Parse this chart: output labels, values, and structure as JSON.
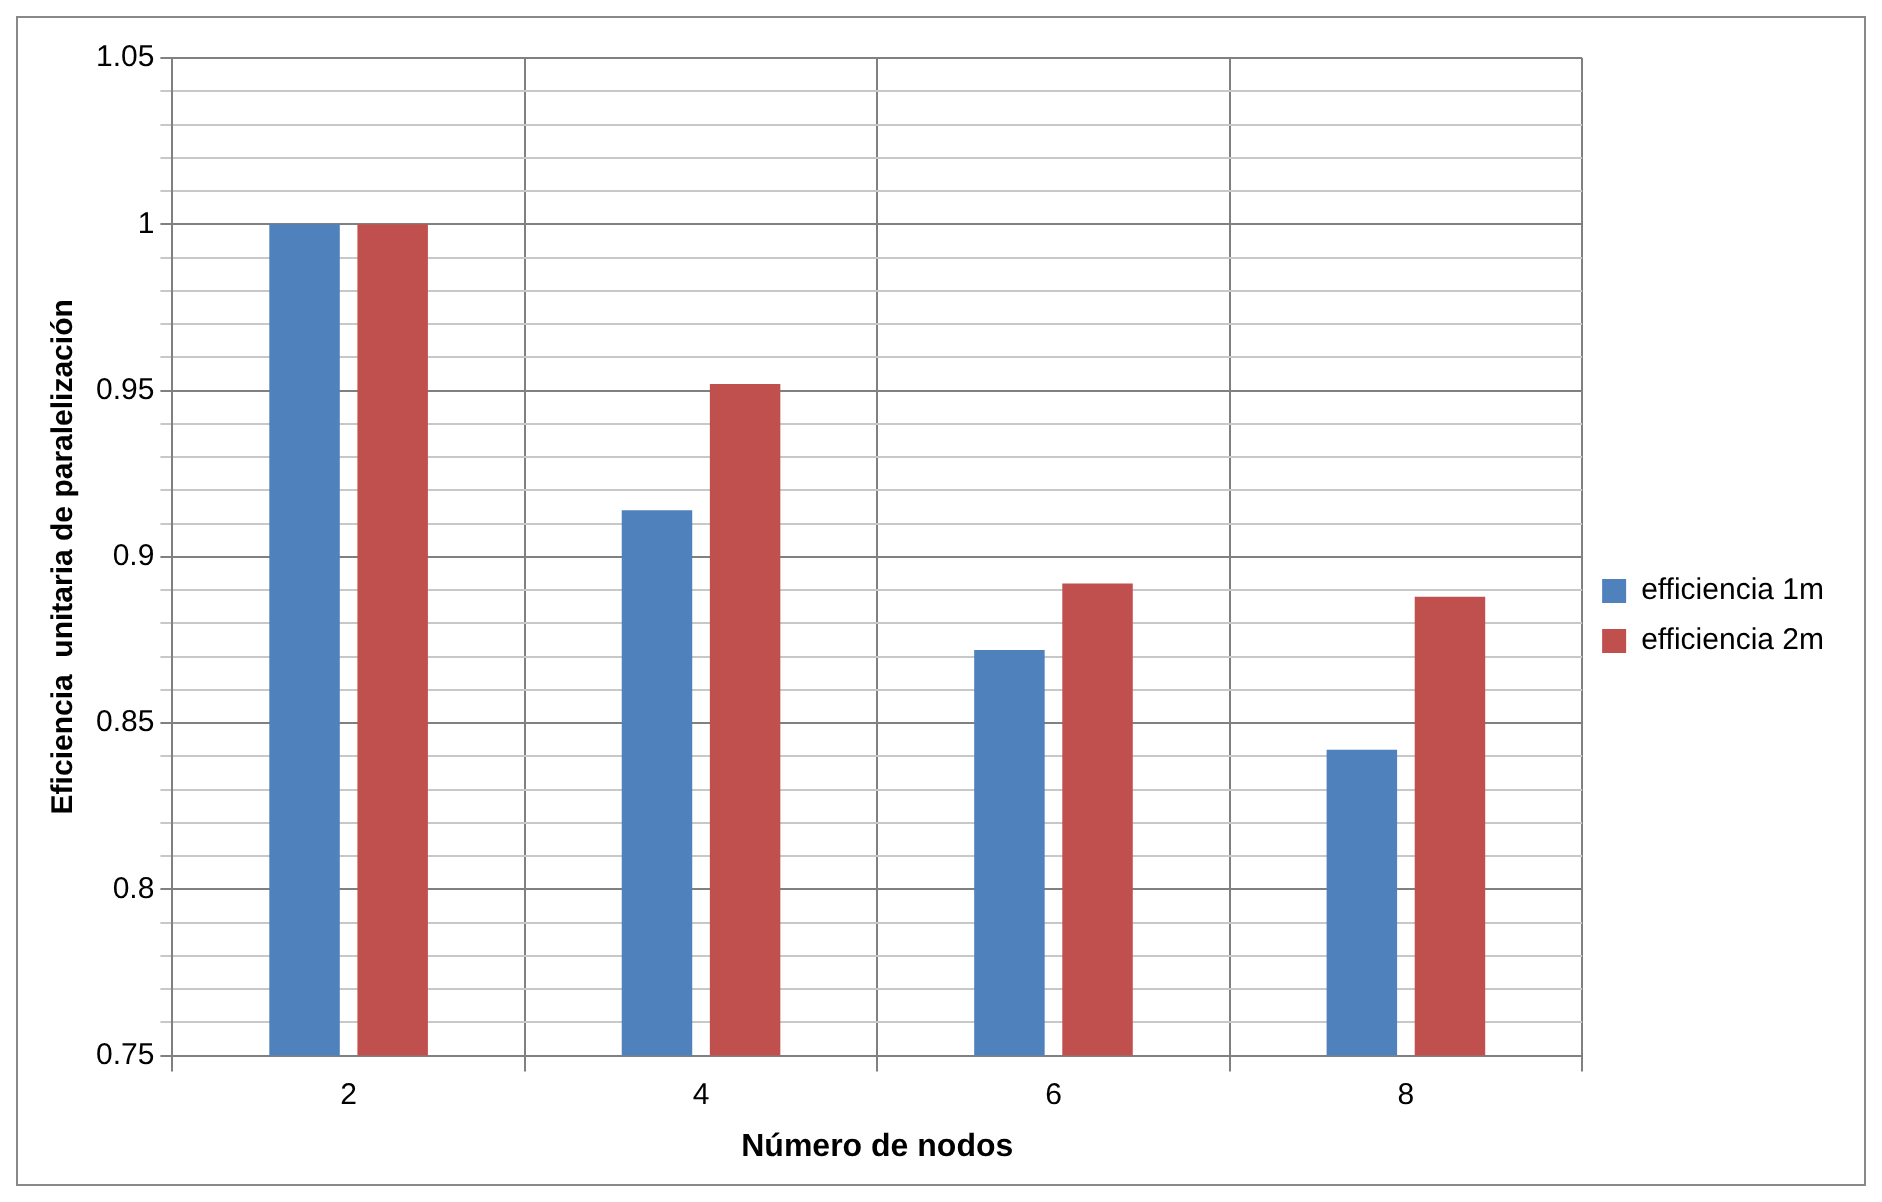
{
  "chart_data": {
    "type": "bar",
    "xlabel": "Número de nodos",
    "ylabel": "Eficiencia  unitaria de paralelización",
    "categories": [
      "2",
      "4",
      "6",
      "8"
    ],
    "series": [
      {
        "name": "efficiencia 1m",
        "color": "#4f81bd",
        "values": [
          1,
          0.914,
          0.872,
          0.842
        ]
      },
      {
        "name": "efficiencia 2m",
        "color": "#c0504d",
        "values": [
          1,
          0.952,
          0.892,
          0.888
        ]
      }
    ],
    "ylim": [
      0.75,
      1.05
    ],
    "yticks": [
      0.75,
      {
        "value": 0.76,
        "label": null
      },
      {
        "value": 0.77,
        "label": null
      },
      {
        "value": 0.78,
        "label": null
      },
      {
        "value": 0.79,
        "label": null
      },
      0.8,
      {
        "value": 0.81,
        "label": null
      },
      {
        "value": 0.82,
        "label": null
      },
      {
        "value": 0.83,
        "label": null
      },
      {
        "value": 0.84,
        "label": null
      },
      0.85,
      {
        "value": 0.86,
        "label": null
      },
      {
        "value": 0.87,
        "label": null
      },
      {
        "value": 0.88,
        "label": null
      },
      {
        "value": 0.89,
        "label": null
      },
      0.9,
      {
        "value": 0.91,
        "label": null
      },
      {
        "value": 0.92,
        "label": null
      },
      {
        "value": 0.93,
        "label": null
      },
      {
        "value": 0.94,
        "label": null
      },
      0.95,
      {
        "value": 0.96,
        "label": null
      },
      {
        "value": 0.97,
        "label": null
      },
      {
        "value": 0.98,
        "label": null
      },
      {
        "value": 0.99,
        "label": null
      },
      1,
      {
        "value": 1.01,
        "label": null
      },
      {
        "value": 1.02,
        "label": null
      },
      {
        "value": 1.03,
        "label": null
      },
      {
        "value": 1.04,
        "label": null
      },
      1.05
    ],
    "grid": true,
    "legend": "right"
  }
}
